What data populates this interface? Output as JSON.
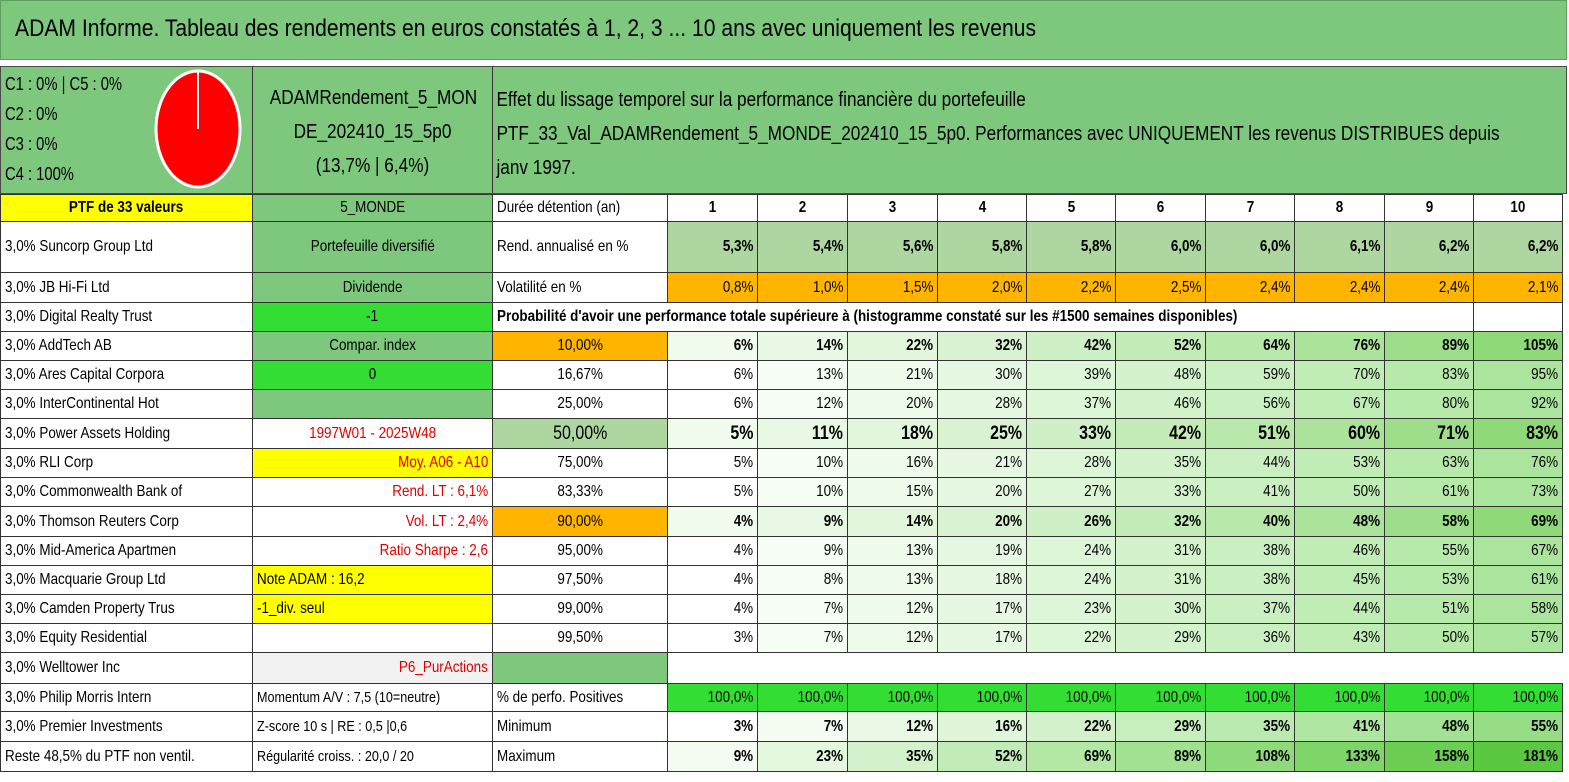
{
  "title": "ADAM Informe. Tableau des rendements en euros constatés à 1, 2, 3 ... 10 ans avec uniquement les revenus",
  "colors": {
    "header_green": "#7dc87d",
    "yellow": "#ffff00",
    "bright_green": "#33dd33",
    "orange": "#ffb500",
    "red": "#e00000",
    "pie_red": "#ff0000"
  },
  "classes": [
    "C1 : 0% | C5 : 0%",
    "C2 : 0%",
    "C3 : 0%",
    "C4 : 100%"
  ],
  "pie": {
    "C1": 0,
    "C2": 0,
    "C3": 0,
    "C4": 100,
    "C5": 0
  },
  "portfolio": {
    "name_line1": "ADAMRendement_5_MON",
    "name_line2": "DE_202410_15_5p0",
    "name_line3": "(13,7% | 6,4%)"
  },
  "effect": {
    "line1": "Effet du lissage temporel sur la performance financière du portefeuille",
    "line2": "PTF_33_Val_ADAMRendement_5_MONDE_202410_15_5p0. Performances avec UNIQUEMENT les revenus DISTRIBUES depuis",
    "line3": "janv 1997."
  },
  "holdings": [
    "PTF de 33 valeurs",
    "3,0% Suncorp Group Ltd",
    "3,0% JB Hi-Fi Ltd",
    "3,0% Digital Realty Trust",
    "3,0% AddTech AB",
    "3,0% Ares Capital Corpora",
    "3,0% InterContinental Hot",
    "3,0% Power Assets Holding",
    "3,0% RLI Corp",
    "3,0% Commonwealth Bank of",
    "3,0% Thomson Reuters Corp",
    "3,0% Mid-America Apartmen",
    "3,0% Macquarie Group Ltd",
    "3,0% Camden Property Trus",
    "3,0% Equity Residential",
    "3,0% Welltower Inc",
    "3,0% Philip Morris Intern",
    "3,0% Premier Investments",
    "Reste 48,5% du PTF non ventil."
  ],
  "info": [
    "5_MONDE",
    "Portefeuille diversifié",
    "Dividende",
    "-1",
    "Compar. index",
    "0",
    "",
    "1997W01 - 2025W48",
    "Moy. A06 - A10",
    "Rend. LT : 6,1%",
    "Vol. LT : 2,4%",
    "Ratio Sharpe : 2,6",
    "Note ADAM : 16,2",
    "-1_div. seul",
    "",
    "P6_PurActions",
    "Momentum A/V : 7,5 (10=neutre)",
    "Z-score 10 s | RE : 0,5 |0,6",
    "Régularité croiss. : 20,0 / 20"
  ],
  "years_label": "Durée détention (an)",
  "years": [
    "1",
    "2",
    "3",
    "4",
    "5",
    "6",
    "7",
    "8",
    "9",
    "10"
  ],
  "rend_label": "Rend. annualisé en %",
  "rend": [
    "5,3%",
    "5,4%",
    "5,6%",
    "5,8%",
    "5,8%",
    "6,0%",
    "6,0%",
    "6,1%",
    "6,2%",
    "6,2%"
  ],
  "vol_label": "Volatilité en %",
  "vol": [
    "0,8%",
    "1,0%",
    "1,5%",
    "2,0%",
    "2,2%",
    "2,5%",
    "2,4%",
    "2,4%",
    "2,4%",
    "2,1%"
  ],
  "prob_title": "Probabilité d'avoir une performance totale supérieure à (histogramme constaté sur les #1500 semaines disponibles)",
  "prob_rows": [
    {
      "p": "10,00%",
      "v": [
        "6%",
        "14%",
        "22%",
        "32%",
        "42%",
        "52%",
        "64%",
        "76%",
        "89%",
        "105%"
      ]
    },
    {
      "p": "16,67%",
      "v": [
        "6%",
        "13%",
        "21%",
        "30%",
        "39%",
        "48%",
        "59%",
        "70%",
        "83%",
        "95%"
      ]
    },
    {
      "p": "25,00%",
      "v": [
        "6%",
        "12%",
        "20%",
        "28%",
        "37%",
        "46%",
        "56%",
        "67%",
        "80%",
        "92%"
      ]
    },
    {
      "p": "50,00%",
      "v": [
        "5%",
        "11%",
        "18%",
        "25%",
        "33%",
        "42%",
        "51%",
        "60%",
        "71%",
        "83%"
      ]
    },
    {
      "p": "75,00%",
      "v": [
        "5%",
        "10%",
        "16%",
        "21%",
        "28%",
        "35%",
        "44%",
        "53%",
        "63%",
        "76%"
      ]
    },
    {
      "p": "83,33%",
      "v": [
        "5%",
        "10%",
        "15%",
        "20%",
        "27%",
        "33%",
        "41%",
        "50%",
        "61%",
        "73%"
      ]
    },
    {
      "p": "90,00%",
      "v": [
        "4%",
        "9%",
        "14%",
        "20%",
        "26%",
        "32%",
        "40%",
        "48%",
        "58%",
        "69%"
      ]
    },
    {
      "p": "95,00%",
      "v": [
        "4%",
        "9%",
        "13%",
        "19%",
        "24%",
        "31%",
        "38%",
        "46%",
        "55%",
        "67%"
      ]
    },
    {
      "p": "97,50%",
      "v": [
        "4%",
        "8%",
        "13%",
        "18%",
        "24%",
        "31%",
        "38%",
        "45%",
        "53%",
        "61%"
      ]
    },
    {
      "p": "99,00%",
      "v": [
        "4%",
        "7%",
        "12%",
        "17%",
        "23%",
        "30%",
        "37%",
        "44%",
        "51%",
        "58%"
      ]
    },
    {
      "p": "99,50%",
      "v": [
        "3%",
        "7%",
        "12%",
        "17%",
        "22%",
        "29%",
        "36%",
        "43%",
        "50%",
        "57%"
      ]
    }
  ],
  "pos_label": "% de perfo. Positives",
  "pos": [
    "100,0%",
    "100,0%",
    "100,0%",
    "100,0%",
    "100,0%",
    "100,0%",
    "100,0%",
    "100,0%",
    "100,0%",
    "100,0%"
  ],
  "min_label": "Minimum",
  "min": [
    "3%",
    "7%",
    "12%",
    "16%",
    "22%",
    "29%",
    "35%",
    "41%",
    "48%",
    "55%"
  ],
  "max_label": "Maximum",
  "max": [
    "9%",
    "23%",
    "35%",
    "52%",
    "69%",
    "89%",
    "108%",
    "133%",
    "158%",
    "181%"
  ]
}
